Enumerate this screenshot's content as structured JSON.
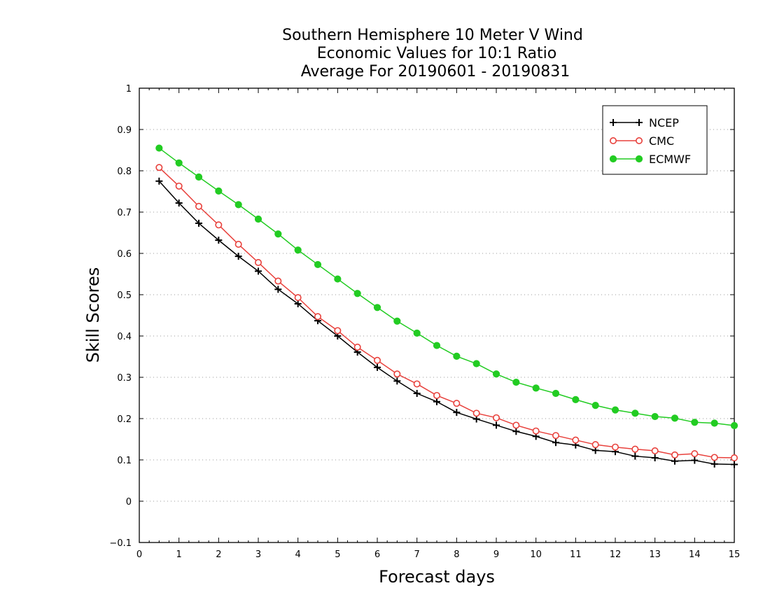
{
  "chart_data": {
    "type": "line",
    "title": [
      "Southern Hemisphere 10 Meter V Wind",
      "Economic Values for 10:1 Ratio",
      "Average For 20190601 - 20190831"
    ],
    "xlabel": "Forecast days",
    "ylabel": "Skill Scores",
    "xlim": [
      0,
      15
    ],
    "ylim": [
      -0.1,
      1
    ],
    "xticks": [
      0,
      1,
      2,
      3,
      4,
      5,
      6,
      7,
      8,
      9,
      10,
      11,
      12,
      13,
      14,
      15
    ],
    "yticks": [
      -0.1,
      0,
      0.1,
      0.2,
      0.3,
      0.4,
      0.5,
      0.6,
      0.7,
      0.8,
      0.9,
      1
    ],
    "ytick_labels": [
      "−0.1",
      "0",
      "0.1",
      "0.2",
      "0.3",
      "0.4",
      "0.5",
      "0.6",
      "0.7",
      "0.8",
      "0.9",
      "1"
    ],
    "grid": "horizontal dotted",
    "legend_position": "top-right",
    "x": [
      0.5,
      1,
      1.5,
      2,
      2.5,
      3,
      3.5,
      4,
      4.5,
      5,
      5.5,
      6,
      6.5,
      7,
      7.5,
      8,
      8.5,
      9,
      9.5,
      10,
      10.5,
      11,
      11.5,
      12,
      12.5,
      13,
      13.5,
      14,
      14.5,
      15
    ],
    "series": [
      {
        "name": "NCEP",
        "color": "#000000",
        "marker": "plus",
        "values": [
          0.775,
          0.722,
          0.673,
          0.632,
          0.593,
          0.557,
          0.513,
          0.478,
          0.437,
          0.4,
          0.361,
          0.324,
          0.291,
          0.261,
          0.241,
          0.215,
          0.199,
          0.184,
          0.169,
          0.157,
          0.142,
          0.136,
          0.123,
          0.12,
          0.109,
          0.105,
          0.097,
          0.099,
          0.09,
          0.089
        ]
      },
      {
        "name": "CMC",
        "color": "#e8413c",
        "marker": "open-circle",
        "values": [
          0.808,
          0.763,
          0.714,
          0.669,
          0.622,
          0.578,
          0.533,
          0.493,
          0.447,
          0.413,
          0.373,
          0.341,
          0.308,
          0.284,
          0.256,
          0.237,
          0.213,
          0.202,
          0.184,
          0.17,
          0.159,
          0.148,
          0.137,
          0.131,
          0.126,
          0.122,
          0.112,
          0.115,
          0.106,
          0.105
        ]
      },
      {
        "name": "ECMWF",
        "color": "#22cc22",
        "marker": "filled-circle",
        "values": [
          0.855,
          0.819,
          0.785,
          0.751,
          0.718,
          0.683,
          0.647,
          0.608,
          0.573,
          0.538,
          0.503,
          0.469,
          0.436,
          0.407,
          0.377,
          0.351,
          0.333,
          0.308,
          0.288,
          0.274,
          0.261,
          0.246,
          0.232,
          0.221,
          0.213,
          0.205,
          0.201,
          0.191,
          0.189,
          0.183
        ]
      }
    ]
  }
}
